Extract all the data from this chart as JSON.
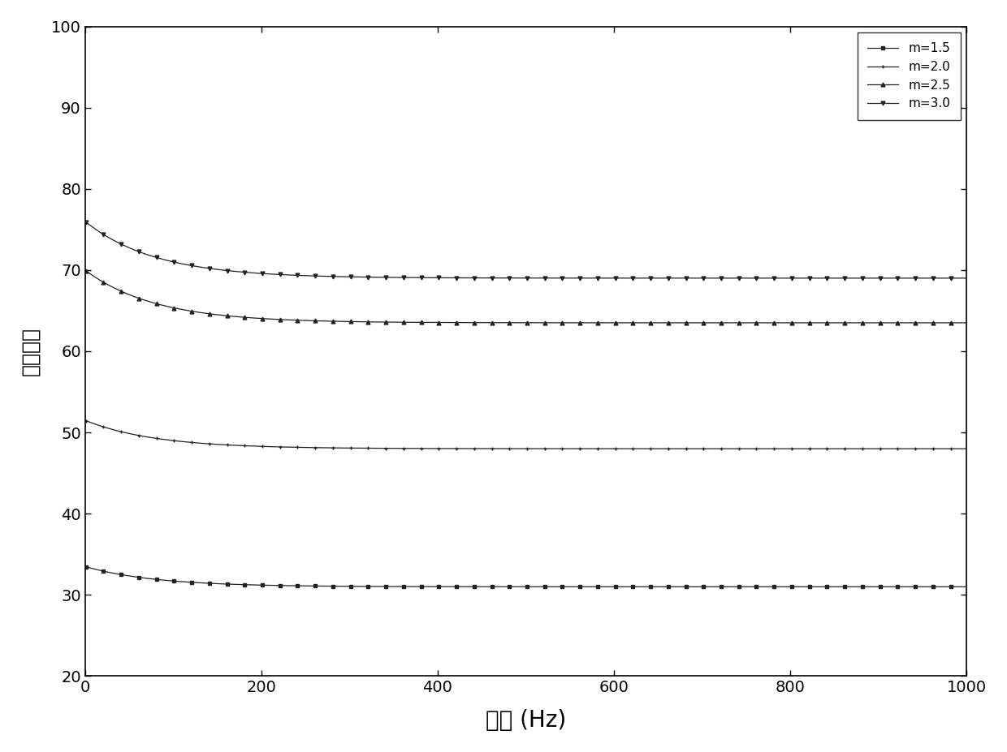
{
  "xlabel": "频率 (Hz)",
  "ylabel": "介电常数",
  "xlim": [
    0,
    1000
  ],
  "ylim": [
    20,
    100
  ],
  "xticks": [
    0,
    200,
    400,
    600,
    800,
    1000
  ],
  "yticks": [
    20,
    30,
    40,
    50,
    60,
    70,
    80,
    90,
    100
  ],
  "series": [
    {
      "label": "m=1.5",
      "start": 33.5,
      "end": 31.0,
      "tau": 80.0,
      "color": "#222222",
      "marker": "s",
      "markersize": 3.5
    },
    {
      "label": "m=2.0",
      "start": 51.5,
      "end": 48.0,
      "tau": 80.0,
      "color": "#222222",
      "marker": "+",
      "markersize": 3.5
    },
    {
      "label": "m=2.5",
      "start": 70.0,
      "end": 63.5,
      "tau": 80.0,
      "color": "#222222",
      "marker": "^",
      "markersize": 3.5
    },
    {
      "label": "m=3.0",
      "start": 76.0,
      "end": 69.0,
      "tau": 80.0,
      "color": "#222222",
      "marker": "v",
      "markersize": 3.5
    }
  ],
  "background_color": "#ffffff",
  "plot_background": "#ffffff",
  "legend_fontsize": 11,
  "xlabel_fontsize": 20,
  "ylabel_fontsize": 18,
  "tick_fontsize": 14
}
